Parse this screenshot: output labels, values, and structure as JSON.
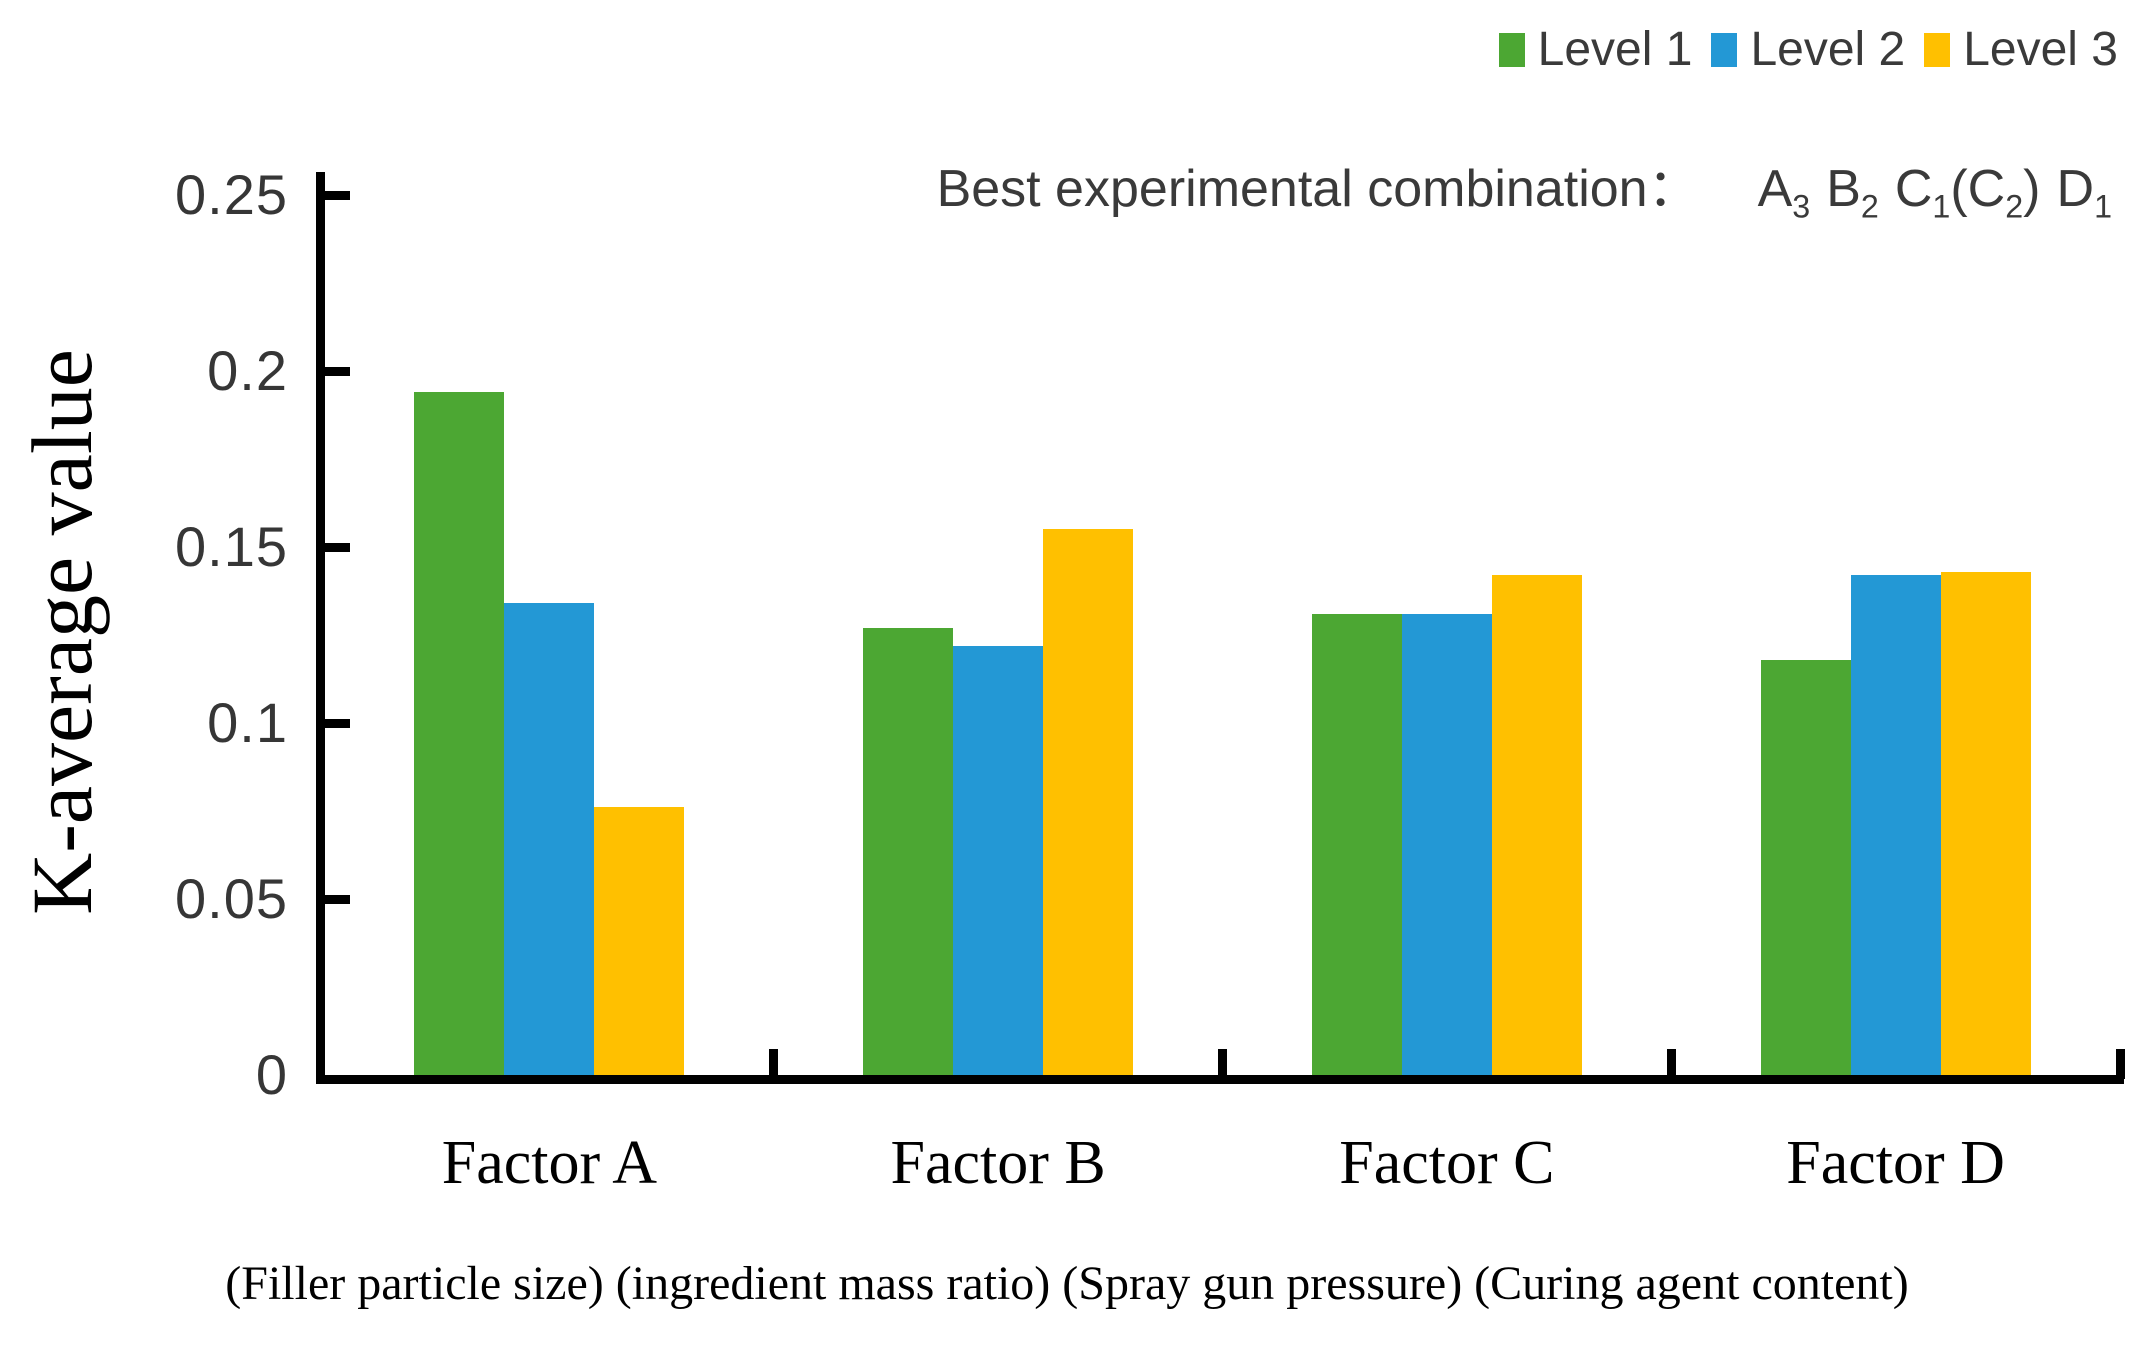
{
  "chart_data": {
    "type": "bar",
    "title": "",
    "ylabel": "K-average value",
    "ylim": [
      0,
      0.25
    ],
    "yticks": [
      0,
      0.05,
      0.1,
      0.15,
      0.2,
      0.25
    ],
    "ytick_labels": [
      "0",
      "0.05",
      "0.1",
      "0.15",
      "0.2",
      "0.25"
    ],
    "categories": [
      "Factor A",
      "Factor B",
      "Factor C",
      "Factor D"
    ],
    "series": [
      {
        "name": "Level 1",
        "color": "#4CA733",
        "values": [
          0.194,
          0.127,
          0.131,
          0.118
        ]
      },
      {
        "name": "Level 2",
        "color": "#2398D5",
        "values": [
          0.134,
          0.122,
          0.131,
          0.142
        ]
      },
      {
        "name": "Level 3",
        "color": "#FFC000",
        "values": [
          0.076,
          0.155,
          0.142,
          0.143
        ]
      }
    ],
    "legend_position": "top-right",
    "grid": false
  },
  "legend": {
    "items": [
      {
        "label": "Level 1",
        "color": "#4CA733"
      },
      {
        "label": "Level 2",
        "color": "#2398D5"
      },
      {
        "label": "Level 3",
        "color": "#FFC000"
      }
    ]
  },
  "annotation": {
    "prefix": "Best experimental combination：",
    "tokens": [
      {
        "pre": "A",
        "sub": "3",
        "post": ""
      },
      {
        "pre": "B",
        "sub": "2",
        "post": ""
      },
      {
        "pre": "C",
        "sub": "1",
        "post": ""
      },
      {
        "pre": "(C",
        "sub": "2",
        "post": ")"
      },
      {
        "pre": "D",
        "sub": "1",
        "post": ""
      }
    ]
  },
  "axis": {
    "ylabel": "K-average value"
  },
  "caption": "(Filler particle size) (ingredient mass ratio) (Spray gun pressure) (Curing agent content)"
}
